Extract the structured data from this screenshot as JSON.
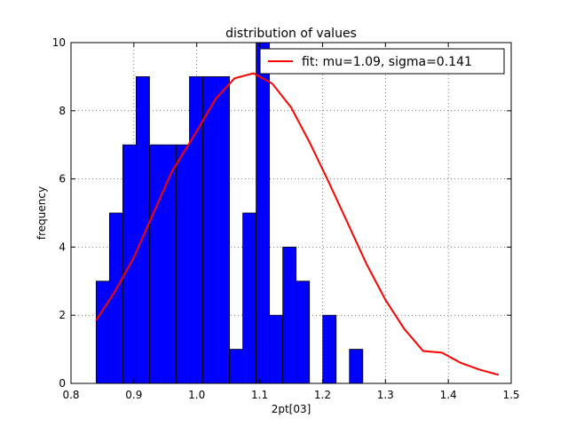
{
  "chart_data": {
    "type": "bar",
    "title": "distribution of values",
    "xlabel": "2pt[03]",
    "ylabel": "frequency",
    "xlim": [
      0.8,
      1.5
    ],
    "ylim": [
      0,
      10
    ],
    "grid": true,
    "grid_style": "dotted",
    "x_ticks": [
      "0.8",
      "0.9",
      "1.0",
      "1.1",
      "1.2",
      "1.3",
      "1.4",
      "1.5"
    ],
    "y_ticks": [
      "0",
      "2",
      "4",
      "6",
      "8",
      "10"
    ],
    "bar_color": "#0000ff",
    "bins": {
      "start": 0.84,
      "width": 0.0212,
      "counts": [
        3,
        5,
        7,
        9,
        7,
        7,
        7,
        9,
        9,
        9,
        1,
        5,
        10,
        2,
        4,
        3,
        0,
        2,
        0,
        1
      ]
    },
    "series": [
      {
        "name": "fit: mu=1.09, sigma=0.141",
        "type": "line",
        "color": "#ff0000",
        "x": [
          0.84,
          0.87,
          0.9,
          0.93,
          0.96,
          1.0,
          1.03,
          1.06,
          1.09,
          1.12,
          1.15,
          1.18,
          1.21,
          1.24,
          1.27,
          1.3,
          1.33,
          1.36,
          1.39,
          1.42,
          1.45,
          1.48
        ],
        "y": [
          1.85,
          2.7,
          3.7,
          4.95,
          6.2,
          7.4,
          8.35,
          8.95,
          9.1,
          8.8,
          8.1,
          7.05,
          5.9,
          4.7,
          3.5,
          2.45,
          1.6,
          0.95,
          0.9,
          0.6,
          0.4,
          0.25
        ]
      }
    ],
    "legend": {
      "position": "top-right",
      "entries": [
        "fit: mu=1.09, sigma=0.141"
      ]
    }
  }
}
